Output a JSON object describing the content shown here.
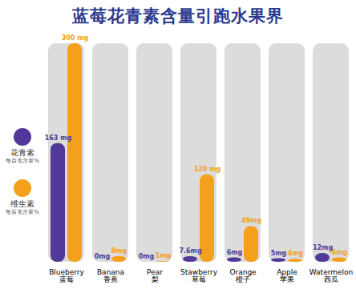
{
  "chart_data": {
    "type": "bar",
    "title": "蓝莓花青素含量引跑水果界",
    "categories": [
      "Blueberry\n蓝莓",
      "Banana\n香蕉",
      "Pear\n梨",
      "Stawberry\n草莓",
      "Orange\n橙子",
      "Apple\n苹果",
      "Watermelon\n西瓜"
    ],
    "series": [
      {
        "name": "花青素",
        "unit_note": "每百克含量%",
        "color": "#51399a",
        "values": [
          163,
          0,
          0,
          7.6,
          6,
          5,
          12
        ],
        "value_labels": [
          "163 mg",
          "0mg",
          "0mg",
          "7.6mg",
          "6mg",
          "5mg",
          "12mg"
        ]
      },
      {
        "name": "维生素",
        "unit_note": "每百克含量%",
        "color": "#f5a01a",
        "values": [
          300,
          8,
          1,
          120,
          49,
          4,
          6
        ],
        "value_labels": [
          "300 mg",
          "8mg",
          "1mg",
          "120 mg",
          "49mg",
          "4mg",
          "6mg"
        ]
      }
    ],
    "ylim": [
      0,
      300
    ],
    "tick_labels": "x",
    "data_labels": true,
    "legend": "left"
  }
}
